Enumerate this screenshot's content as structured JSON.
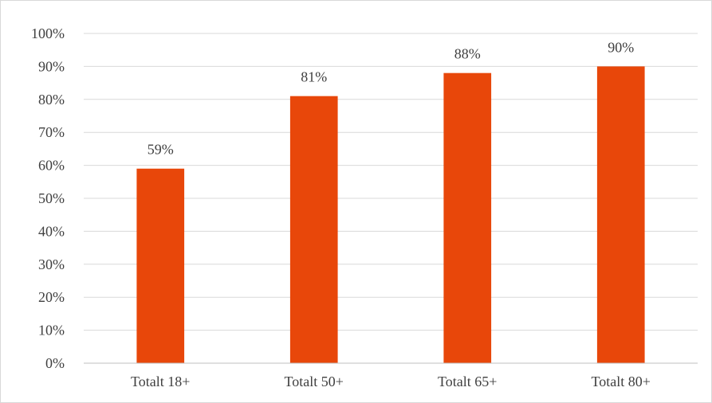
{
  "chart_data": {
    "type": "bar",
    "title": "",
    "xlabel": "",
    "ylabel": "",
    "categories": [
      "Totalt 18+",
      "Totalt 50+",
      "Totalt 65+",
      "Totalt 80+"
    ],
    "values": [
      59,
      81,
      88,
      90
    ],
    "data_labels": [
      "59%",
      "81%",
      "88%",
      "90%"
    ],
    "ylim": [
      0,
      100
    ],
    "y_ticks": [
      0,
      10,
      20,
      30,
      40,
      50,
      60,
      70,
      80,
      90,
      100
    ],
    "y_tick_labels": [
      "0%",
      "10%",
      "20%",
      "30%",
      "40%",
      "50%",
      "60%",
      "70%",
      "80%",
      "90%",
      "100%"
    ],
    "grid": true,
    "legend": "none",
    "bar_color": "#E8470A"
  }
}
